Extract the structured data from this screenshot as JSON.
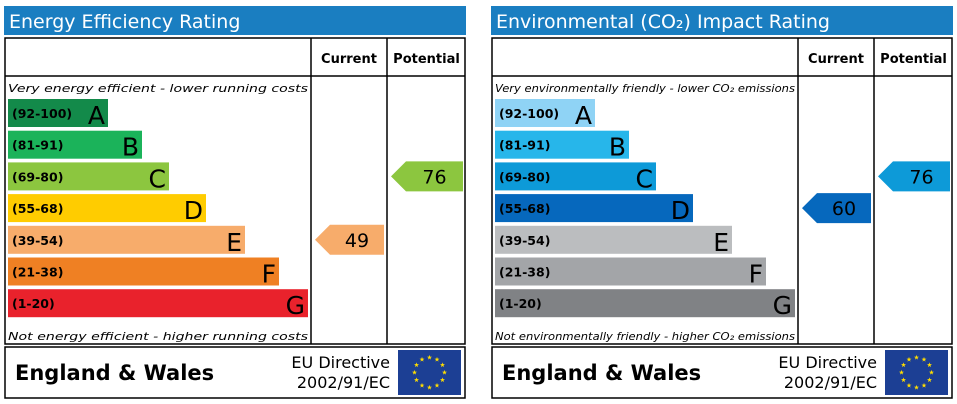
{
  "chart_data": [
    {
      "type": "bar",
      "title": "Energy Efficiency Rating",
      "columns": {
        "current": "Current",
        "potential": "Potential"
      },
      "top_note": "Very energy efficient - lower running costs",
      "bottom_note": "Not energy efficient - higher running costs",
      "bands": [
        {
          "range": "(92-100)",
          "letter": "A",
          "color": "#138a4a"
        },
        {
          "range": "(81-91)",
          "letter": "B",
          "color": "#1bb35a"
        },
        {
          "range": "(69-80)",
          "letter": "C",
          "color": "#8cc63f"
        },
        {
          "range": "(55-68)",
          "letter": "D",
          "color": "#ffcc00"
        },
        {
          "range": "(39-54)",
          "letter": "E",
          "color": "#f7ac6b"
        },
        {
          "range": "(21-38)",
          "letter": "F",
          "color": "#ef8023"
        },
        {
          "range": "(1-20)",
          "letter": "G",
          "color": "#e9222c"
        }
      ],
      "current": {
        "value": 49,
        "color": "#f7ac6b"
      },
      "potential": {
        "value": 76,
        "color": "#8cc63f"
      },
      "footer": {
        "region": "England & Wales",
        "directive_line1": "EU Directive",
        "directive_line2": "2002/91/EC"
      }
    },
    {
      "type": "bar",
      "title": "Environmental (CO₂) Impact Rating",
      "columns": {
        "current": "Current",
        "potential": "Potential"
      },
      "top_note": "Very environmentally friendly - lower CO₂ emissions",
      "bottom_note": "Not environmentally friendly - higher CO₂ emissions",
      "bands": [
        {
          "range": "(92-100)",
          "letter": "A",
          "color": "#8fd3f5"
        },
        {
          "range": "(81-91)",
          "letter": "B",
          "color": "#27b6ea"
        },
        {
          "range": "(69-80)",
          "letter": "C",
          "color": "#0d9ad8"
        },
        {
          "range": "(55-68)",
          "letter": "D",
          "color": "#0668bd"
        },
        {
          "range": "(39-54)",
          "letter": "E",
          "color": "#bbbdbf"
        },
        {
          "range": "(21-38)",
          "letter": "F",
          "color": "#a3a5a8"
        },
        {
          "range": "(1-20)",
          "letter": "G",
          "color": "#808285"
        }
      ],
      "current": {
        "value": 60,
        "color": "#0668bd"
      },
      "potential": {
        "value": 76,
        "color": "#0d9ad8"
      },
      "footer": {
        "region": "England & Wales",
        "directive_line1": "EU Directive",
        "directive_line2": "2002/91/EC"
      }
    }
  ],
  "colors": {
    "header_bg": "#1a7ec1",
    "eu_flag_bg": "#1c3f94",
    "eu_star": "#ffdd00"
  }
}
